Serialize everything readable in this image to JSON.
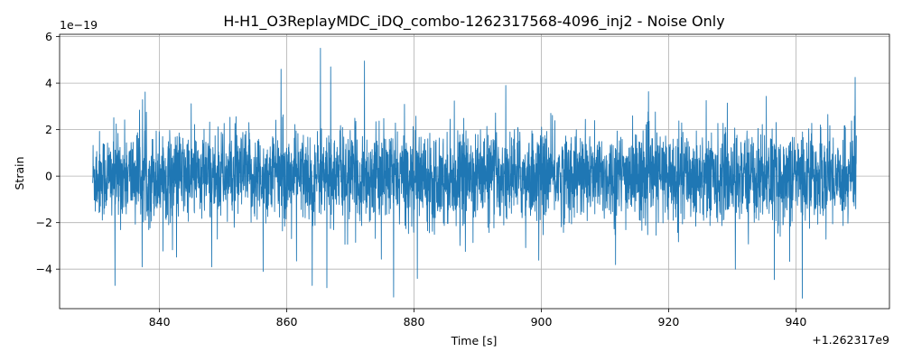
{
  "chart_data": {
    "type": "line",
    "title": "H-H1_O3ReplayMDC_iDQ_combo-1262317568-4096_inj2 - Noise Only",
    "xlabel": "Time [s]",
    "ylabel": "Strain",
    "x_offset_label": "+1.262317e9",
    "y_scale_label": "1e−19",
    "x_offset": 1262317000,
    "y_scale": 1e-19,
    "xlim": [
      824.3,
      954.7
    ],
    "ylim": [
      -5.7,
      6.1
    ],
    "x_range": [
      829.5,
      949.5
    ],
    "x_ticks": [
      840,
      860,
      880,
      900,
      920,
      940
    ],
    "x_tick_labels": [
      "840",
      "860",
      "880",
      "900",
      "920",
      "940"
    ],
    "y_ticks": [
      -4,
      -2,
      0,
      2,
      4,
      6
    ],
    "y_tick_labels": [
      "−4",
      "−2",
      "0",
      "2",
      "4",
      "6"
    ],
    "grid": true,
    "color": "#1f77b4",
    "series": [
      {
        "values_note_free": true,
        "peaks": [
          {
            "x": 865.3,
            "y": 5.5
          },
          {
            "x": 872.2,
            "y": 4.95
          },
          {
            "x": 859.1,
            "y": 4.6
          },
          {
            "x": 866.9,
            "y": 4.7
          },
          {
            "x": 949.3,
            "y": 4.25
          },
          {
            "x": 833.0,
            "y": -4.7
          },
          {
            "x": 876.8,
            "y": -5.2
          },
          {
            "x": 941.0,
            "y": -5.25
          },
          {
            "x": 866.3,
            "y": -4.8
          },
          {
            "x": 864.0,
            "y": -4.7
          },
          {
            "x": 856.3,
            "y": -4.1
          },
          {
            "x": 936.6,
            "y": -4.45
          },
          {
            "x": 880.5,
            "y": -4.4
          },
          {
            "x": 930.5,
            "y": -4.0
          }
        ]
      }
    ]
  }
}
